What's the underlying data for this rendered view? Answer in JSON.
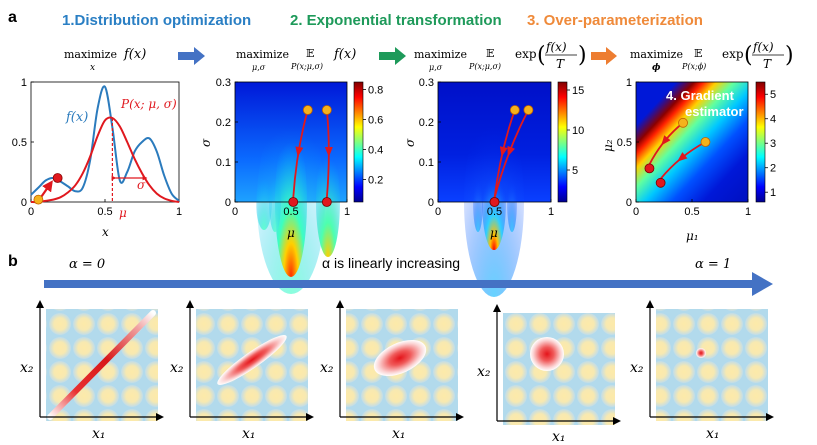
{
  "panel_a": {
    "label": "a",
    "steps": [
      {
        "label": "1.Distribution optimization",
        "color": "#2a7fc4"
      },
      {
        "label": "2. Exponential transformation",
        "color": "#1e9a5a"
      },
      {
        "label": "3. Over-parameterization",
        "color": "#ef8a3a"
      }
    ],
    "formulas": [
      {
        "op": "maximize",
        "sub": "x",
        "body": "f(x)"
      },
      {
        "op": "maximize",
        "sub": "μ,σ",
        "exp_sym": "𝔼",
        "exp_sub": "P(x;μ,σ)",
        "body": "f(x)"
      },
      {
        "op": "maximize",
        "sub": "μ,σ",
        "exp_sym": "𝔼",
        "exp_sub": "P(x;μ,σ)",
        "body": "exp",
        "frac_num": "f(x)",
        "frac_den": "T"
      },
      {
        "op": "maximize",
        "sub": "ϕ",
        "exp_sym": "𝔼",
        "exp_sub": "P(x;ϕ)",
        "body": "exp",
        "frac_num": "f(x)",
        "frac_den": "T"
      }
    ],
    "arrow_colors": [
      "#4472c4",
      "#1e9a5a",
      "#ed7d31"
    ],
    "gradient_label": [
      "4. Gradient",
      "estimator"
    ]
  },
  "panel_b": {
    "label": "b",
    "alpha_start": "α = 0",
    "alpha_mid": "α is linearly increasing",
    "alpha_end": "α = 1",
    "arrow_color": "#4472c4",
    "xlabel": "x₁",
    "ylabel": "x₂",
    "tiles": [
      {
        "shape": "diagonal-line"
      },
      {
        "shape": "narrow-ellipse"
      },
      {
        "shape": "ellipse"
      },
      {
        "shape": "circle"
      },
      {
        "shape": "dot"
      }
    ]
  },
  "chart_data": [
    {
      "type": "line",
      "title": "",
      "xlabel": "x",
      "ylabel": "",
      "xlim": [
        0,
        1
      ],
      "ylim": [
        0,
        1
      ],
      "xticks": [
        "0",
        "0.5",
        "1"
      ],
      "yticks": [
        "0",
        "0.5",
        "1"
      ],
      "series": [
        {
          "name": "f(x)",
          "color": "#2b7bbd",
          "x": [
            0,
            0.05,
            0.1,
            0.15,
            0.2,
            0.25,
            0.3,
            0.35,
            0.4,
            0.45,
            0.5,
            0.55,
            0.6,
            0.65,
            0.7,
            0.75,
            0.8,
            0.85,
            0.9,
            0.95,
            1.0
          ],
          "y": [
            0.06,
            0.12,
            0.18,
            0.2,
            0.17,
            0.13,
            0.09,
            0.12,
            0.35,
            0.78,
            0.96,
            0.62,
            0.18,
            0.25,
            0.42,
            0.5,
            0.53,
            0.42,
            0.22,
            0.07,
            0.01
          ]
        },
        {
          "name": "P(x; μ, σ)",
          "color": "#e0181e",
          "x": [
            0,
            0.05,
            0.1,
            0.15,
            0.2,
            0.25,
            0.3,
            0.35,
            0.4,
            0.45,
            0.5,
            0.55,
            0.6,
            0.65,
            0.7,
            0.75,
            0.8,
            0.85,
            0.9,
            0.95,
            1.0
          ],
          "y": [
            0.0,
            0.0,
            0.01,
            0.02,
            0.04,
            0.08,
            0.14,
            0.24,
            0.38,
            0.55,
            0.68,
            0.7,
            0.63,
            0.5,
            0.36,
            0.24,
            0.14,
            0.07,
            0.03,
            0.01,
            0.0
          ]
        }
      ],
      "annotations": {
        "f_label": "f(x)",
        "p_label": "P(x; μ, σ)",
        "mu_label": "μ",
        "sigma_label": "σ",
        "mu": 0.55
      },
      "points": [
        {
          "x": 0.05,
          "y": 0.02,
          "color": "#f5b21b"
        },
        {
          "x": 0.18,
          "y": 0.2,
          "color": "#e0181e"
        }
      ]
    },
    {
      "type": "heatmap",
      "xlabel": "μ",
      "ylabel": "σ",
      "xlim": [
        0,
        1
      ],
      "ylim": [
        0,
        0.3
      ],
      "xticks": [
        "0",
        "0.5",
        "1"
      ],
      "yticks": [
        "0",
        "0.1",
        "0.2",
        "0.3"
      ],
      "colorbar_ticks": [
        "0.2",
        "0.4",
        "0.6",
        "0.8"
      ],
      "trajectories": [
        {
          "start": [
            0.65,
            0.23
          ],
          "end": [
            0.52,
            0.0
          ]
        },
        {
          "start": [
            0.82,
            0.23
          ],
          "end": [
            0.82,
            0.0
          ]
        }
      ]
    },
    {
      "type": "heatmap",
      "xlabel": "μ",
      "ylabel": "σ",
      "xlim": [
        0,
        1
      ],
      "ylim": [
        0,
        0.3
      ],
      "xticks": [
        "0",
        "0.5",
        "1"
      ],
      "yticks": [
        "0",
        "0.1",
        "0.2",
        "0.3"
      ],
      "colorbar_ticks": [
        "5",
        "10",
        "15"
      ],
      "trajectories": [
        {
          "start": [
            0.68,
            0.23
          ],
          "end": [
            0.5,
            0.0
          ]
        },
        {
          "start": [
            0.8,
            0.23
          ],
          "end": [
            0.5,
            0.0
          ]
        }
      ]
    },
    {
      "type": "heatmap",
      "xlabel": "μ₁",
      "ylabel": "μ₂",
      "xlim": [
        0,
        1
      ],
      "ylim": [
        0,
        1
      ],
      "xticks": [
        "0",
        "0.5",
        "1"
      ],
      "yticks": [
        "0",
        "0.5",
        "1"
      ],
      "colorbar_ticks": [
        "1",
        "2",
        "3",
        "4",
        "5"
      ],
      "trajectories": [
        {
          "start": [
            0.42,
            0.66
          ],
          "end": [
            0.12,
            0.28
          ]
        },
        {
          "start": [
            0.62,
            0.5
          ],
          "end": [
            0.22,
            0.16
          ]
        }
      ]
    }
  ]
}
